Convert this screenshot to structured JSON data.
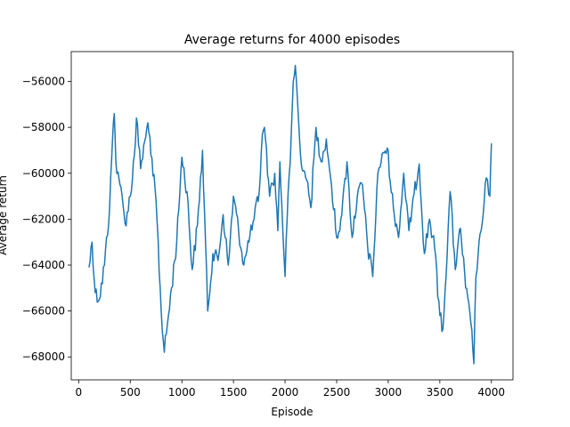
{
  "chart_data": {
    "type": "line",
    "title": "Average returns for 4000 episodes",
    "xlabel": "Episode",
    "ylabel": "Average return",
    "xlim": [
      -72,
      4209
    ],
    "ylim": [
      -69000,
      -54700
    ],
    "xticks": [
      0,
      500,
      1000,
      1500,
      2000,
      2500,
      3000,
      3500,
      4000
    ],
    "xtick_labels": [
      "0",
      "500",
      "1000",
      "1500",
      "2000",
      "2500",
      "3000",
      "3500",
      "4000"
    ],
    "yticks": [
      -68000,
      -66000,
      -64000,
      -62000,
      -60000,
      -58000,
      -56000
    ],
    "ytick_labels": [
      "−68000",
      "−66000",
      "−64000",
      "−62000",
      "−60000",
      "−58000",
      "−56000"
    ],
    "grid": false,
    "legend": "none",
    "color": "#1f77b4",
    "series": [
      {
        "name": "Average return",
        "x": [
          100,
          130,
          160,
          200,
          250,
          300,
          330,
          345,
          360,
          400,
          450,
          500,
          540,
          560,
          600,
          650,
          670,
          700,
          750,
          800,
          830,
          850,
          900,
          950,
          1000,
          1050,
          1100,
          1150,
          1200,
          1250,
          1300,
          1350,
          1400,
          1450,
          1500,
          1550,
          1600,
          1650,
          1700,
          1750,
          1780,
          1800,
          1850,
          1900,
          1930,
          1950,
          2000,
          2020,
          2050,
          2080,
          2100,
          2150,
          2200,
          2250,
          2300,
          2350,
          2400,
          2450,
          2500,
          2550,
          2600,
          2650,
          2700,
          2750,
          2800,
          2850,
          2900,
          2950,
          2990,
          3050,
          3100,
          3150,
          3200,
          3250,
          3300,
          3350,
          3400,
          3450,
          3500,
          3530,
          3550,
          3600,
          3650,
          3700,
          3750,
          3800,
          3830,
          3850,
          3900,
          3950,
          3985,
          4000
        ],
        "y": [
          -64100,
          -63000,
          -65200,
          -65500,
          -64000,
          -61500,
          -58300,
          -57400,
          -59500,
          -60500,
          -62200,
          -61000,
          -59200,
          -57600,
          -59800,
          -58400,
          -57800,
          -59200,
          -61200,
          -66000,
          -67800,
          -67000,
          -65000,
          -63000,
          -59300,
          -60800,
          -64200,
          -62300,
          -59000,
          -66000,
          -63500,
          -63800,
          -61800,
          -64000,
          -61000,
          -62500,
          -64000,
          -63000,
          -62000,
          -60800,
          -58300,
          -58000,
          -61000,
          -60000,
          -62500,
          -59500,
          -64500,
          -62000,
          -59500,
          -56000,
          -55300,
          -59200,
          -60200,
          -61500,
          -58000,
          -59500,
          -58500,
          -60500,
          -62800,
          -61800,
          -59500,
          -62800,
          -61000,
          -60500,
          -63200,
          -64500,
          -60000,
          -59100,
          -58900,
          -61500,
          -62800,
          -60000,
          -62500,
          -60900,
          -59600,
          -63500,
          -62000,
          -63300,
          -66200,
          -66800,
          -65200,
          -60800,
          -64200,
          -62400,
          -65000,
          -66500,
          -68300,
          -64500,
          -62500,
          -60200,
          -61000,
          -58700
        ]
      }
    ]
  }
}
